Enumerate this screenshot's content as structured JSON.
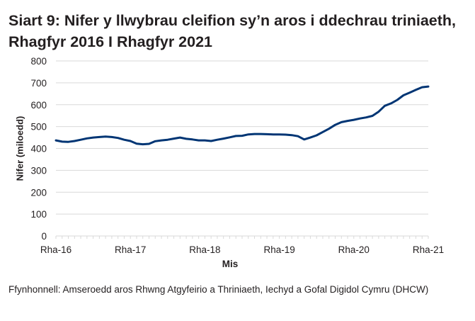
{
  "title": "Siart 9: Nifer y llwybrau cleifion sy’n aros i ddechrau triniaeth, Rhagfyr 2016 I Rhagfyr 2021",
  "source": "Ffynhonnell: Amseroedd aros Rhwng Atgyfeirio a Thriniaeth, Iechyd a Gofal Digidol Cymru (DHCW)",
  "colors": {
    "line": "#003574",
    "grid": "#d9d9d9",
    "text": "#231f20"
  },
  "chart_data": {
    "type": "line",
    "title": "Siart 9: Nifer y llwybrau cleifion sy’n aros i ddechrau triniaeth, Rhagfyr 2016 I Rhagfyr 2021",
    "xlabel": "Mis",
    "ylabel": "Nifer (miloedd)",
    "ylim": [
      0,
      800
    ],
    "yticks": [
      0,
      100,
      200,
      300,
      400,
      500,
      600,
      700,
      800
    ],
    "xtick_labels": [
      "Rha-16",
      "Rha-17",
      "Rha-18",
      "Rha-19",
      "Rha-20",
      "Rha-21"
    ],
    "grid": true,
    "legend": null,
    "x": [
      "Dec-16",
      "Jan-17",
      "Feb-17",
      "Mar-17",
      "Apr-17",
      "May-17",
      "Jun-17",
      "Jul-17",
      "Aug-17",
      "Sep-17",
      "Oct-17",
      "Nov-17",
      "Dec-17",
      "Jan-18",
      "Feb-18",
      "Mar-18",
      "Apr-18",
      "May-18",
      "Jun-18",
      "Jul-18",
      "Aug-18",
      "Sep-18",
      "Oct-18",
      "Nov-18",
      "Dec-18",
      "Jan-19",
      "Feb-19",
      "Mar-19",
      "Apr-19",
      "May-19",
      "Jun-19",
      "Jul-19",
      "Aug-19",
      "Sep-19",
      "Oct-19",
      "Nov-19",
      "Dec-19",
      "Jan-20",
      "Feb-20",
      "Mar-20",
      "Apr-20",
      "May-20",
      "Jun-20",
      "Jul-20",
      "Aug-20",
      "Sep-20",
      "Oct-20",
      "Nov-20",
      "Dec-20",
      "Jan-21",
      "Feb-21",
      "Mar-21",
      "Apr-21",
      "May-21",
      "Jun-21",
      "Jul-21",
      "Aug-21",
      "Sep-21",
      "Oct-21",
      "Nov-21",
      "Dec-21"
    ],
    "series": [
      {
        "name": "Nifer (miloedd)",
        "values": [
          437,
          431,
          430,
          434,
          440,
          446,
          450,
          452,
          454,
          452,
          448,
          440,
          434,
          422,
          419,
          421,
          433,
          437,
          440,
          445,
          450,
          444,
          441,
          437,
          437,
          434,
          440,
          445,
          451,
          457,
          458,
          464,
          466,
          466,
          465,
          464,
          464,
          463,
          461,
          456,
          441,
          450,
          460,
          475,
          490,
          508,
          520,
          526,
          531,
          537,
          542,
          549,
          568,
          595,
          606,
          622,
          643,
          655,
          668,
          680,
          683
        ]
      }
    ]
  }
}
